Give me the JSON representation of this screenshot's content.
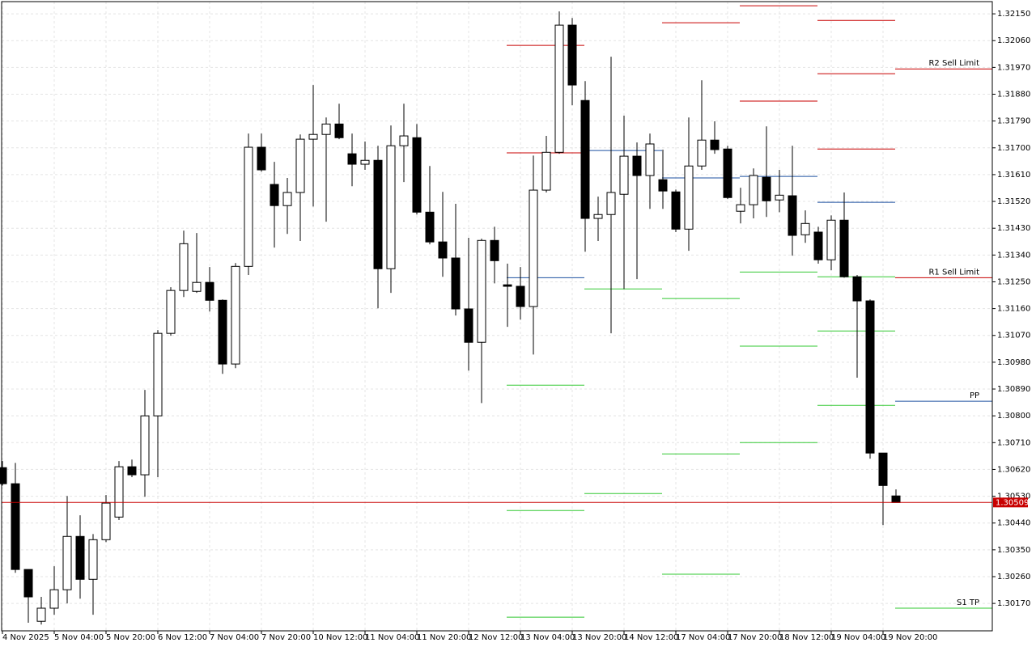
{
  "chart_data": {
    "type": "candlestick",
    "categories": [
      "4 Nov 2025",
      null,
      null,
      null,
      "5 Nov 04:00",
      null,
      null,
      null,
      "5 Nov 20:00",
      null,
      null,
      null,
      "6 Nov 12:00",
      null,
      null,
      null,
      "7 Nov 04:00",
      null,
      null,
      null,
      "7 Nov 20:00",
      null,
      null,
      null,
      "10 Nov 12:00",
      null,
      null,
      null,
      "11 Nov 04:00",
      null,
      null,
      null,
      "11 Nov 20:00",
      null,
      null,
      null,
      "12 Nov 12:00",
      null,
      null,
      null,
      "13 Nov 04:00",
      null,
      null,
      null,
      "13 Nov 20:00",
      null,
      null,
      null,
      "14 Nov 12:00",
      null,
      null,
      null,
      "17 Nov 04:00",
      null,
      null,
      null,
      "17 Nov 20:00",
      null,
      null,
      null,
      "18 Nov 12:00",
      null,
      null,
      null,
      "19 Nov 04:00",
      null,
      null,
      null,
      "19 Nov 20:00",
      null
    ],
    "open": [
      1.30626,
      1.30572,
      1.30284,
      1.3011,
      1.30154,
      1.30216,
      1.30395,
      1.30251,
      1.30384,
      1.3046,
      1.30629,
      1.30602,
      1.308,
      1.31077,
      1.31221,
      1.31218,
      1.31248,
      1.31188,
      1.30974,
      1.31302,
      1.31702,
      1.31577,
      1.31506,
      1.3155,
      1.31729,
      1.31745,
      1.3178,
      1.3168,
      1.31645,
      1.31658,
      1.31294,
      1.31707,
      1.31734,
      1.31484,
      1.31384,
      1.3133,
      1.31159,
      1.31047,
      1.31389,
      1.3124,
      1.31235,
      1.31167,
      1.31558,
      1.31685,
      1.32112,
      1.31859,
      1.31463,
      1.31476,
      1.31544,
      1.31672,
      1.31607,
      1.31593,
      1.31552,
      1.31427,
      1.31639,
      1.31726,
      1.31696,
      1.31487,
      1.31509,
      1.31601,
      1.31525,
      1.31539,
      1.31408,
      1.31417,
      1.31324,
      1.31457,
      1.31267,
      1.31186,
      1.30675,
      1.30531
    ],
    "high": [
      1.30648,
      1.30642,
      1.30284,
      1.30192,
      1.30295,
      1.30531,
      1.30466,
      1.30403,
      1.30534,
      1.30648,
      1.30653,
      1.30887,
      1.31088,
      1.31232,
      1.31422,
      1.31414,
      1.313,
      1.31191,
      1.31313,
      1.31748,
      1.31748,
      1.31653,
      1.31599,
      1.31745,
      1.31911,
      1.31802,
      1.31848,
      1.31748,
      1.31721,
      1.31707,
      1.31775,
      1.31848,
      1.3178,
      1.31639,
      1.31552,
      1.31512,
      1.31398,
      1.31395,
      1.31435,
      1.31311,
      1.313,
      1.31674,
      1.3174,
      1.32158,
      1.32136,
      1.31924,
      1.31536,
      1.32006,
      1.31808,
      1.31718,
      1.31748,
      1.31694,
      1.3156,
      1.31802,
      1.31927,
      1.31789,
      1.31707,
      1.31566,
      1.31631,
      1.31772,
      1.31626,
      1.31707,
      1.3149,
      1.31435,
      1.31473,
      1.3155,
      1.31273,
      1.31191,
      1.30675,
      1.30553
    ],
    "low": [
      1.30566,
      1.30273,
      1.30105,
      1.30099,
      1.30132,
      1.3017,
      1.30186,
      1.30132,
      1.30376,
      1.3045,
      1.30594,
      1.30528,
      1.30594,
      1.31069,
      1.31199,
      1.31213,
      1.3115,
      1.30941,
      1.3096,
      1.31273,
      1.3162,
      1.31365,
      1.31411,
      1.31387,
      1.31503,
      1.31452,
      1.31729,
      1.31571,
      1.31626,
      1.31161,
      1.31213,
      1.31585,
      1.31476,
      1.31376,
      1.31267,
      1.31137,
      1.30952,
      1.30843,
      1.31245,
      1.31099,
      1.31123,
      1.31006,
      1.3155,
      1.3168,
      1.31843,
      1.31351,
      1.31387,
      1.31077,
      1.31226,
      1.31259,
      1.31495,
      1.31495,
      1.31417,
      1.31354,
      1.31626,
      1.3168,
      1.31528,
      1.31446,
      1.31463,
      1.31468,
      1.31484,
      1.31338,
      1.31381,
      1.31311,
      1.31289,
      1.31264,
      1.30928,
      1.30656,
      1.30433,
      1.30509
    ],
    "close": [
      1.30572,
      1.30284,
      1.30192,
      1.30154,
      1.30216,
      1.30395,
      1.30251,
      1.30384,
      1.30507,
      1.30629,
      1.30602,
      1.308,
      1.31077,
      1.31221,
      1.31378,
      1.31248,
      1.31188,
      1.30974,
      1.31302,
      1.31702,
      1.31626,
      1.31506,
      1.3155,
      1.31729,
      1.31745,
      1.3178,
      1.31734,
      1.31645,
      1.31658,
      1.31294,
      1.31707,
      1.3174,
      1.31484,
      1.31384,
      1.3133,
      1.31159,
      1.31047,
      1.31389,
      1.31321,
      1.31235,
      1.31167,
      1.31558,
      1.31685,
      1.32112,
      1.31911,
      1.31463,
      1.31476,
      1.3155,
      1.31672,
      1.31607,
      1.31713,
      1.31555,
      1.31427,
      1.31639,
      1.31726,
      1.31694,
      1.31533,
      1.31509,
      1.31607,
      1.31522,
      1.31541,
      1.31406,
      1.31446,
      1.31324,
      1.31457,
      1.31267,
      1.31186,
      1.30675,
      1.30566,
      1.30509
    ],
    "ylim": [
      1.30078,
      1.32191
    ],
    "yticks": [
      {
        "value": 1.3017,
        "label": "1.30170"
      },
      {
        "value": 1.3026,
        "label": "1.30260"
      },
      {
        "value": 1.3035,
        "label": "1.30350"
      },
      {
        "value": 1.3044,
        "label": "1.30440"
      },
      {
        "value": 1.3053,
        "label": "1.30530"
      },
      {
        "value": 1.3062,
        "label": "1.30620"
      },
      {
        "value": 1.3071,
        "label": "1.30710"
      },
      {
        "value": 1.308,
        "label": "1.30800"
      },
      {
        "value": 1.3089,
        "label": "1.30890"
      },
      {
        "value": 1.3098,
        "label": "1.30980"
      },
      {
        "value": 1.3107,
        "label": "1.31070"
      },
      {
        "value": 1.3116,
        "label": "1.31160"
      },
      {
        "value": 1.3125,
        "label": "1.31250"
      },
      {
        "value": 1.3134,
        "label": "1.31340"
      },
      {
        "value": 1.3143,
        "label": "1.31430"
      },
      {
        "value": 1.3152,
        "label": "1.31520"
      },
      {
        "value": 1.3161,
        "label": "1.31610"
      },
      {
        "value": 1.317,
        "label": "1.31700"
      },
      {
        "value": 1.3179,
        "label": "1.31790"
      },
      {
        "value": 1.3188,
        "label": "1.31880"
      },
      {
        "value": 1.3197,
        "label": "1.31970"
      },
      {
        "value": 1.3206,
        "label": "1.32060"
      },
      {
        "value": 1.3215,
        "label": "1.32150"
      }
    ],
    "grid": true,
    "current_price": 1.30509,
    "current_color": "#c80000",
    "up_color": "#ffffff",
    "down_color": "#000000",
    "pivots": [
      {
        "start": 39,
        "levels": [
          {
            "value": 1.32044,
            "color": "#c80000"
          },
          {
            "value": 1.31683,
            "color": "#c80000"
          },
          {
            "value": 1.31264,
            "color": "#1e50a0"
          },
          {
            "value": 1.30903,
            "color": "#32c832"
          },
          {
            "value": 1.30482,
            "color": "#32c832"
          },
          {
            "value": 1.30124,
            "color": "#32c832"
          }
        ]
      },
      {
        "start": 45,
        "levels": [
          {
            "value": 1.31691,
            "color": "#1e50a0"
          },
          {
            "value": 1.31226,
            "color": "#32c832"
          },
          {
            "value": 1.30539,
            "color": "#32c832"
          }
        ]
      },
      {
        "start": 51,
        "levels": [
          {
            "value": 1.3212,
            "color": "#c80000"
          },
          {
            "value": 1.31599,
            "color": "#1e50a0"
          },
          {
            "value": 1.31194,
            "color": "#32c832"
          },
          {
            "value": 1.30672,
            "color": "#32c832"
          },
          {
            "value": 1.30268,
            "color": "#32c832"
          }
        ]
      },
      {
        "start": 57,
        "levels": [
          {
            "value": 1.32177,
            "color": "#c80000"
          },
          {
            "value": 1.31857,
            "color": "#c80000"
          },
          {
            "value": 1.31604,
            "color": "#1e50a0"
          },
          {
            "value": 1.31283,
            "color": "#32c832"
          },
          {
            "value": 1.31034,
            "color": "#32c832"
          },
          {
            "value": 1.3071,
            "color": "#32c832"
          }
        ]
      },
      {
        "start": 63,
        "levels": [
          {
            "value": 1.32128,
            "color": "#c80000"
          },
          {
            "value": 1.31949,
            "color": "#c80000"
          },
          {
            "value": 1.31696,
            "color": "#c80000"
          },
          {
            "value": 1.31517,
            "color": "#1e50a0"
          },
          {
            "value": 1.31267,
            "color": "#32c832"
          },
          {
            "value": 1.31085,
            "color": "#32c832"
          },
          {
            "value": 1.30835,
            "color": "#32c832"
          }
        ]
      },
      {
        "start": 69,
        "levels": [
          {
            "value": 1.31965,
            "color": "#c80000",
            "label": "R2 Sell Limit"
          },
          {
            "value": 1.31264,
            "color": "#c80000",
            "label": "R1 Sell Limit"
          },
          {
            "value": 1.30849,
            "color": "#1e50a0",
            "label": "PP"
          },
          {
            "value": 1.30154,
            "color": "#32c832",
            "label": "S1 TP"
          }
        ]
      }
    ]
  }
}
